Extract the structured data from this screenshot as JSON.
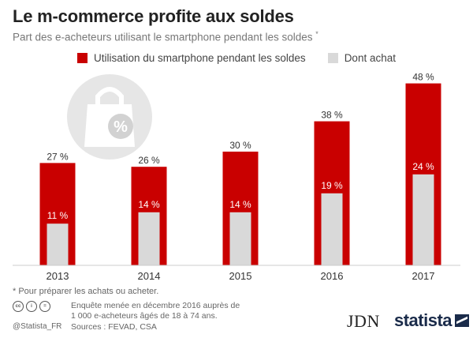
{
  "header": {
    "title": "Le m-commerce profite aux soldes",
    "subtitle": "Part des e-acheteurs utilisant le smartphone pendant les soldes",
    "subtitle_mark": "*"
  },
  "colors": {
    "primary": "#c90000",
    "secondary": "#d9d9d9"
  },
  "icon": "shopping-bag-percent-icon",
  "chart_data": {
    "type": "bar",
    "categories": [
      "2013",
      "2014",
      "2015",
      "2016",
      "2017"
    ],
    "series": [
      {
        "name": "Utilisation du smartphone pendant les soldes",
        "values": [
          27,
          26,
          30,
          38,
          48
        ],
        "labels": [
          "27 %",
          "26 %",
          "30 %",
          "38 %",
          "48 %"
        ]
      },
      {
        "name": "Dont achat",
        "values": [
          11,
          14,
          14,
          19,
          24
        ],
        "labels": [
          "11 %",
          "14 %",
          "14 %",
          "19 %",
          "24 %"
        ]
      }
    ],
    "ylim": [
      0,
      50
    ],
    "grid": false,
    "legend_position": "top"
  },
  "footer": {
    "footnote": "* Pour préparer les achats ou acheter.",
    "survey_line1": "Enquête menée en décembre 2016 auprès de",
    "survey_line2": "1 000 e-acheteurs âgés de 18 à 74 ans.",
    "sources": "Sources : FEVAD, CSA",
    "handle": "@Statista_FR",
    "cc_icons": [
      "cc",
      "i",
      "="
    ],
    "logo_jdn": "JDN",
    "logo_statista": "statista"
  }
}
